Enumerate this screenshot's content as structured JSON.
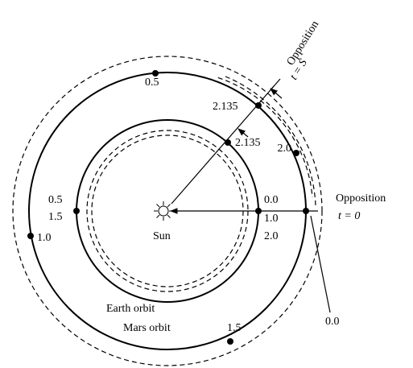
{
  "labels": {
    "sun": "Sun",
    "earth_orbit": "Earth orbit",
    "mars_orbit": "Mars orbit",
    "opposition_top": "Opposition",
    "t_top": "t = S",
    "opposition_right": "Opposition",
    "t_right": "t = 0"
  },
  "earth_points": [
    "0.0",
    "1.0",
    "2.0",
    "2.135",
    "0.5",
    "1.5"
  ],
  "mars_points": [
    "0.5",
    "2.135",
    "2.0",
    "1.0",
    "1.5",
    "0.0"
  ]
}
